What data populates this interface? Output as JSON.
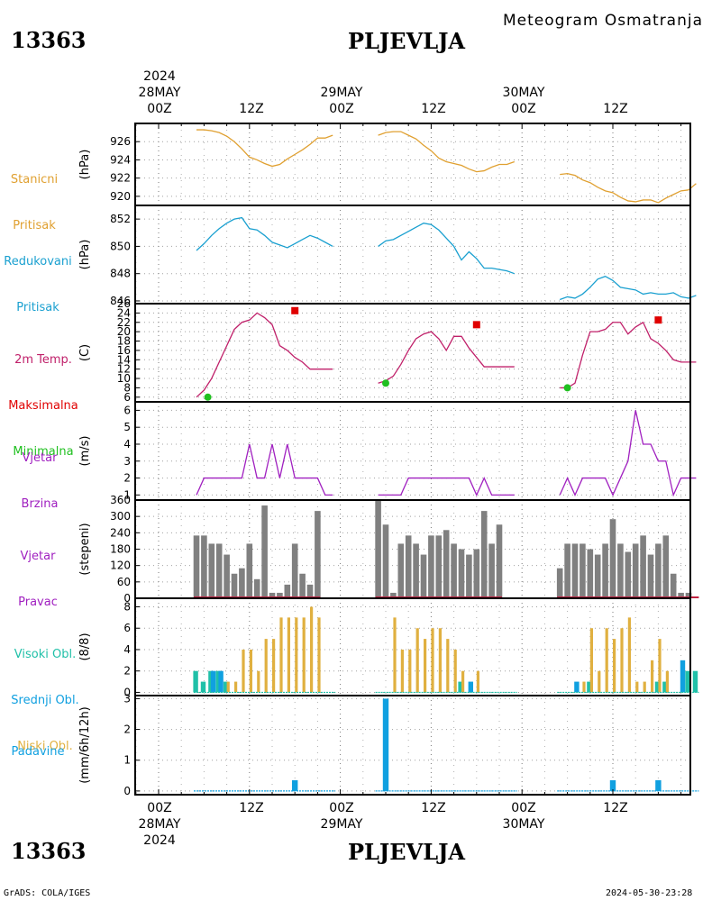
{
  "header": {
    "station_id": "13363",
    "station_name": "PLJEVLJA",
    "chart_title": "Meteogram Osmatranja"
  },
  "top_axis": {
    "year": "2024",
    "days": [
      {
        "label": "28MAY",
        "hour": "00Z"
      },
      {
        "label": "29MAY",
        "hour": "00Z"
      },
      {
        "label": "30MAY",
        "hour": "00Z"
      }
    ],
    "hour_12": "12Z"
  },
  "footer": {
    "left": "GrADS: COLA/IGES",
    "right": "2024-05-30-23:28"
  },
  "colors": {
    "pressure": "#E0A030",
    "reduced": "#1AA0D0",
    "temp": "#C0206A",
    "max": "#E00000",
    "min": "#20C020",
    "wind": "#A020C0",
    "direction": "#808080",
    "high_cloud": "#20C0A8",
    "mid_cloud": "#10A0E0",
    "low_cloud": "#E0B040",
    "precip": "#10A0E0"
  },
  "chart_data": [
    {
      "type": "line",
      "panel": "station_pressure",
      "label_lines": [
        "Stanicni",
        "Pritisak"
      ],
      "unit": "(hPa)",
      "ylim": [
        919,
        928
      ],
      "yticks": [
        920,
        922,
        924,
        926
      ],
      "x_hours": [
        5,
        6,
        7,
        8,
        9,
        10,
        11,
        12,
        13,
        14,
        15,
        16,
        17,
        18,
        19,
        20,
        21,
        22,
        23,
        29,
        30,
        31,
        32,
        33,
        34,
        35,
        36,
        37,
        38,
        39,
        40,
        41,
        42,
        43,
        44,
        45,
        46,
        47,
        53,
        54,
        55,
        56,
        57,
        58,
        59,
        60,
        61,
        62,
        63,
        64,
        65,
        66,
        67,
        68,
        69,
        70,
        71
      ],
      "values": [
        927.3,
        927.3,
        927.2,
        927.0,
        926.6,
        926.0,
        925.2,
        924.3,
        924.0,
        923.6,
        923.3,
        923.5,
        924.1,
        924.6,
        925.1,
        925.7,
        926.4,
        926.4,
        926.7,
        926.7,
        927.0,
        927.1,
        927.1,
        926.7,
        926.3,
        925.6,
        925.0,
        924.2,
        923.8,
        923.6,
        923.4,
        923.0,
        922.7,
        922.8,
        923.2,
        923.5,
        923.5,
        923.8,
        922.4,
        922.5,
        922.3,
        921.8,
        921.5,
        921.0,
        920.6,
        920.4,
        919.9,
        919.5,
        919.4,
        919.6,
        919.6,
        919.3,
        919.8,
        920.2,
        920.6,
        920.7,
        921.4
      ]
    },
    {
      "type": "line",
      "panel": "reduced_pressure",
      "label_lines": [
        "Redukovani",
        "Pritisak"
      ],
      "unit": "(hPa)",
      "ylim": [
        845.8,
        853
      ],
      "yticks": [
        846,
        848,
        850,
        852
      ],
      "x_hours": [
        5,
        6,
        7,
        8,
        9,
        10,
        11,
        12,
        13,
        14,
        15,
        16,
        17,
        18,
        19,
        20,
        21,
        22,
        23,
        29,
        30,
        31,
        32,
        33,
        34,
        35,
        36,
        37,
        38,
        39,
        40,
        41,
        42,
        43,
        44,
        45,
        46,
        47,
        53,
        54,
        55,
        56,
        57,
        58,
        59,
        60,
        61,
        62,
        63,
        64,
        65,
        66,
        67,
        68,
        69,
        70,
        71
      ],
      "values": [
        849.7,
        850.2,
        850.8,
        851.3,
        851.7,
        852.0,
        852.1,
        851.3,
        851.2,
        850.8,
        850.3,
        850.1,
        849.9,
        850.2,
        850.5,
        850.8,
        850.6,
        850.3,
        850.0,
        850.0,
        850.4,
        850.5,
        850.8,
        851.1,
        851.4,
        851.7,
        851.6,
        851.2,
        850.6,
        850.0,
        849.0,
        849.6,
        849.1,
        848.4,
        848.4,
        848.3,
        848.2,
        848.0,
        846.1,
        846.3,
        846.2,
        846.5,
        847.0,
        847.6,
        847.8,
        847.5,
        847.0,
        846.9,
        846.8,
        846.5,
        846.6,
        846.5,
        846.5,
        846.6,
        846.3,
        846.2,
        846.4
      ]
    },
    {
      "type": "line",
      "panel": "temperature",
      "label_lines": [
        "2m Temp.",
        "Maksimalna",
        "Minimalna"
      ],
      "unit": "(C)",
      "ylim": [
        5,
        26
      ],
      "yticks": [
        6,
        8,
        10,
        12,
        14,
        16,
        18,
        20,
        22,
        24,
        26
      ],
      "x_hours": [
        5,
        6,
        7,
        8,
        9,
        10,
        11,
        12,
        13,
        14,
        15,
        16,
        17,
        18,
        19,
        20,
        21,
        22,
        23,
        29,
        30,
        31,
        32,
        33,
        34,
        35,
        36,
        37,
        38,
        39,
        40,
        41,
        42,
        43,
        44,
        45,
        46,
        47,
        53,
        54,
        55,
        56,
        57,
        58,
        59,
        60,
        61,
        62,
        63,
        64,
        65,
        66,
        67,
        68,
        69,
        70,
        71
      ],
      "values": [
        6.0,
        7.5,
        10.0,
        13.5,
        17.0,
        20.5,
        22.0,
        22.5,
        24.0,
        23.0,
        21.5,
        17.0,
        16.0,
        14.5,
        13.5,
        12.0,
        12.0,
        12.0,
        12.0,
        9.0,
        9.5,
        10.5,
        13.0,
        16.0,
        18.5,
        19.5,
        20.0,
        18.5,
        16.0,
        19.0,
        19.0,
        16.5,
        14.5,
        12.5,
        12.5,
        12.5,
        12.5,
        12.5,
        8.0,
        8.0,
        9.0,
        15.0,
        20.0,
        20.0,
        20.5,
        22.0,
        22.0,
        19.5,
        21.0,
        22.0,
        18.5,
        17.5,
        16.0,
        14.0,
        13.5,
        13.5,
        13.5
      ],
      "max_points": [
        {
          "x": 18,
          "y": 24.5
        },
        {
          "x": 42,
          "y": 21.5
        },
        {
          "x": 66,
          "y": 22.5
        }
      ],
      "min_points": [
        {
          "x": 6.5,
          "y": 6.0
        },
        {
          "x": 30,
          "y": 9.0
        },
        {
          "x": 54,
          "y": 8.0
        }
      ]
    },
    {
      "type": "line",
      "panel": "wind_speed",
      "label_lines": [
        "Vjetar",
        "Brzina"
      ],
      "unit": "(m/s)",
      "ylim": [
        0.7,
        6.5
      ],
      "yticks": [
        1,
        2,
        3,
        4,
        5,
        6
      ],
      "x_hours": [
        5,
        6,
        7,
        8,
        9,
        10,
        11,
        12,
        13,
        14,
        15,
        16,
        17,
        18,
        19,
        20,
        21,
        22,
        23,
        29,
        30,
        31,
        32,
        33,
        34,
        35,
        36,
        37,
        38,
        39,
        40,
        41,
        42,
        43,
        44,
        45,
        46,
        47,
        53,
        54,
        55,
        56,
        57,
        58,
        59,
        60,
        61,
        62,
        63,
        64,
        65,
        66,
        67,
        68,
        69,
        70,
        71
      ],
      "values": [
        1,
        2,
        2,
        2,
        2,
        2,
        2,
        4,
        2,
        2,
        4,
        2,
        4,
        2,
        2,
        2,
        2,
        1,
        1,
        1,
        1,
        1,
        1,
        2,
        2,
        2,
        2,
        2,
        2,
        2,
        2,
        2,
        1,
        2,
        1,
        1,
        1,
        1,
        1,
        2,
        1,
        2,
        2,
        2,
        2,
        1,
        2,
        3,
        6,
        4,
        4,
        3,
        3,
        1,
        2,
        2,
        2
      ]
    },
    {
      "type": "bar",
      "panel": "wind_direction",
      "label_lines": [
        "Vjetar",
        "Pravac"
      ],
      "unit": "(stepeni)",
      "ylim": [
        0,
        360
      ],
      "yticks": [
        0,
        60,
        120,
        180,
        240,
        300,
        360
      ],
      "x_hours": [
        5,
        6,
        7,
        8,
        9,
        10,
        11,
        12,
        13,
        14,
        15,
        16,
        17,
        18,
        19,
        20,
        21,
        29,
        30,
        31,
        32,
        33,
        34,
        35,
        36,
        37,
        38,
        39,
        40,
        41,
        42,
        43,
        44,
        45,
        53,
        54,
        55,
        56,
        57,
        58,
        59,
        60,
        61,
        62,
        63,
        64,
        65,
        66,
        67,
        68,
        69,
        70,
        71
      ],
      "values": [
        230,
        230,
        200,
        200,
        160,
        90,
        110,
        200,
        70,
        340,
        20,
        20,
        50,
        200,
        90,
        50,
        320,
        360,
        270,
        20,
        200,
        230,
        200,
        160,
        230,
        230,
        250,
        200,
        180,
        160,
        180,
        320,
        200,
        270,
        110,
        200,
        200,
        200,
        180,
        160,
        200,
        290,
        200,
        170,
        200,
        230,
        160,
        200,
        230,
        90,
        20,
        20,
        0
      ]
    },
    {
      "type": "bar",
      "panel": "clouds",
      "label_lines": [
        "Visoki Obl.",
        "Srednji Obl.",
        "Niski Obl."
      ],
      "unit": "(8/8)",
      "ylim": [
        -0.3,
        8.8
      ],
      "yticks": [
        0,
        2,
        4,
        6,
        8
      ],
      "series": [
        {
          "name": "Visoki Obl.",
          "points": [
            {
              "x": 5,
              "v": 2
            },
            {
              "x": 6,
              "v": 1
            },
            {
              "x": 7,
              "v": 2
            },
            {
              "x": 8,
              "v": 2
            },
            {
              "x": 9,
              "v": 1
            },
            {
              "x": 40,
              "v": 1
            },
            {
              "x": 57,
              "v": 1
            },
            {
              "x": 66,
              "v": 1
            },
            {
              "x": 67,
              "v": 1
            },
            {
              "x": 70,
              "v": 2
            },
            {
              "x": 71,
              "v": 2
            }
          ]
        },
        {
          "name": "Srednji Obl.",
          "points": [
            {
              "x": 7,
              "v": 2
            },
            {
              "x": 8,
              "v": 2
            },
            {
              "x": 41,
              "v": 1
            },
            {
              "x": 55,
              "v": 1
            },
            {
              "x": 69,
              "v": 3
            }
          ]
        },
        {
          "name": "Niski Obl.",
          "points": [
            {
              "x": 9,
              "v": 1
            },
            {
              "x": 10,
              "v": 1
            },
            {
              "x": 11,
              "v": 4
            },
            {
              "x": 12,
              "v": 4
            },
            {
              "x": 13,
              "v": 2
            },
            {
              "x": 14,
              "v": 5
            },
            {
              "x": 15,
              "v": 5
            },
            {
              "x": 16,
              "v": 7
            },
            {
              "x": 17,
              "v": 7
            },
            {
              "x": 18,
              "v": 7
            },
            {
              "x": 19,
              "v": 7
            },
            {
              "x": 20,
              "v": 8
            },
            {
              "x": 21,
              "v": 7
            },
            {
              "x": 31,
              "v": 7
            },
            {
              "x": 32,
              "v": 4
            },
            {
              "x": 33,
              "v": 4
            },
            {
              "x": 34,
              "v": 6
            },
            {
              "x": 35,
              "v": 5
            },
            {
              "x": 36,
              "v": 6
            },
            {
              "x": 37,
              "v": 6
            },
            {
              "x": 38,
              "v": 5
            },
            {
              "x": 39,
              "v": 4
            },
            {
              "x": 40,
              "v": 2
            },
            {
              "x": 42,
              "v": 2
            },
            {
              "x": 56,
              "v": 1
            },
            {
              "x": 57,
              "v": 6
            },
            {
              "x": 58,
              "v": 2
            },
            {
              "x": 59,
              "v": 6
            },
            {
              "x": 60,
              "v": 5
            },
            {
              "x": 61,
              "v": 6
            },
            {
              "x": 62,
              "v": 7
            },
            {
              "x": 63,
              "v": 1
            },
            {
              "x": 64,
              "v": 1
            },
            {
              "x": 65,
              "v": 3
            },
            {
              "x": 66,
              "v": 5
            },
            {
              "x": 67,
              "v": 2
            }
          ]
        }
      ]
    },
    {
      "type": "bar",
      "panel": "precipitation",
      "label_lines": [
        "Padavine"
      ],
      "unit": "(mm/6h/12h)",
      "ylim": [
        -0.12,
        3.1
      ],
      "yticks": [
        0,
        1,
        2,
        3
      ],
      "x_hours": [
        18,
        30,
        60,
        66
      ],
      "values": [
        0.35,
        3.0,
        0.35,
        0.35
      ]
    }
  ]
}
